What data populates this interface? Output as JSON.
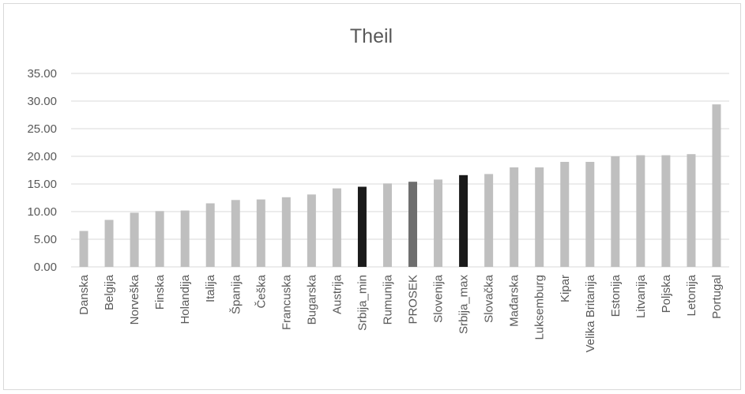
{
  "chart_data": {
    "type": "bar",
    "title": "Theil",
    "xlabel": "",
    "ylabel": "",
    "ylim": [
      0,
      35
    ],
    "yticks": [
      "0.00",
      "5.00",
      "10.00",
      "15.00",
      "20.00",
      "25.00",
      "30.00",
      "35.00"
    ],
    "grid": true,
    "legend": "none",
    "categories": [
      "Danska",
      "Belgija",
      "Norveška",
      "Finska",
      "Holandija",
      "Italija",
      "Španija",
      "Češka",
      "Francuska",
      "Bugarska",
      "Austrija",
      "Srbija_min",
      "Rumunija",
      "PROSEK",
      "Slovenija",
      "Srbija_max",
      "Slovačka",
      "Mađarska",
      "Luksemburg",
      "Kipar",
      "Velika Britanija",
      "Estonija",
      "Litvanija",
      "Poljska",
      "Letonija",
      "Portugal"
    ],
    "values": [
      6.5,
      8.5,
      9.8,
      10.1,
      10.2,
      11.5,
      12.1,
      12.2,
      12.6,
      13.1,
      14.2,
      14.5,
      15.1,
      15.4,
      15.8,
      16.6,
      16.8,
      18.0,
      18.0,
      19.0,
      19.0,
      20.0,
      20.2,
      20.2,
      20.4,
      29.4
    ],
    "colors": [
      "#bfbfbf",
      "#bfbfbf",
      "#bfbfbf",
      "#bfbfbf",
      "#bfbfbf",
      "#bfbfbf",
      "#bfbfbf",
      "#bfbfbf",
      "#bfbfbf",
      "#bfbfbf",
      "#bfbfbf",
      "#1a1a1a",
      "#bfbfbf",
      "#6e6e6e",
      "#bfbfbf",
      "#1a1a1a",
      "#bfbfbf",
      "#bfbfbf",
      "#bfbfbf",
      "#bfbfbf",
      "#bfbfbf",
      "#bfbfbf",
      "#bfbfbf",
      "#bfbfbf",
      "#bfbfbf",
      "#bfbfbf"
    ],
    "gridline_color": "#d9d9d9",
    "text_color": "#595959"
  }
}
